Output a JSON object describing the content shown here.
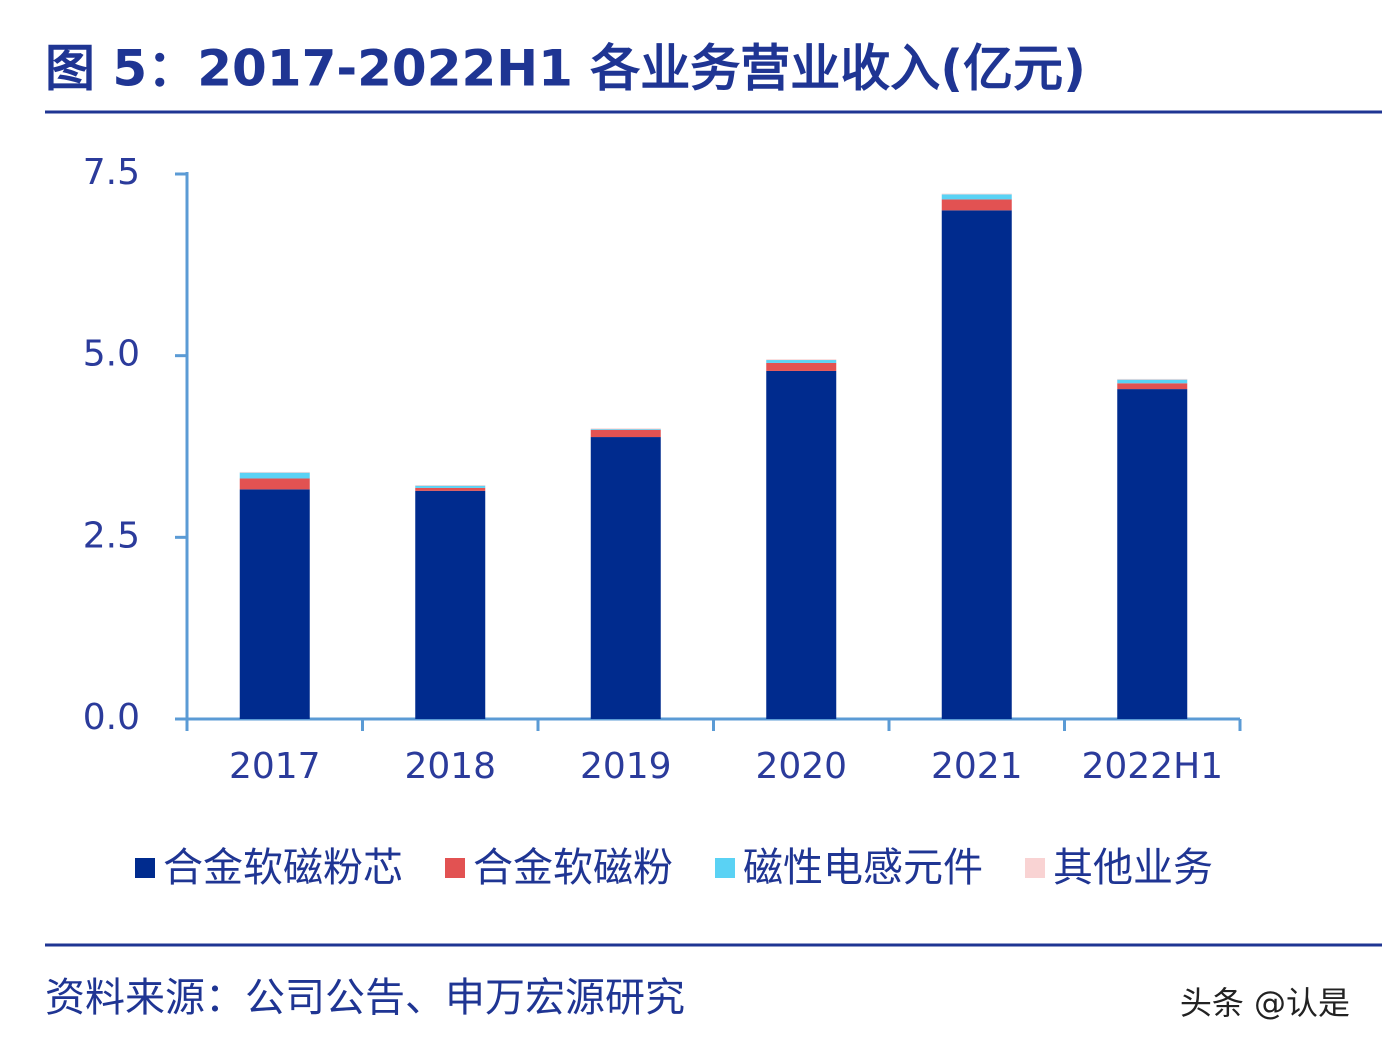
{
  "chart_data": {
    "type": "stacked-bar",
    "title": "图 5：2017-2022H1 各业务营业收入(亿元)",
    "categories": [
      "2017",
      "2018",
      "2019",
      "2020",
      "2021",
      "2022H1"
    ],
    "series": [
      {
        "name": "合金软磁粉芯",
        "color": "#002b8e",
        "values": [
          3.16,
          3.14,
          3.88,
          4.79,
          7.0,
          4.54
        ]
      },
      {
        "name": "合金软磁粉",
        "color": "#e25252",
        "values": [
          0.15,
          0.04,
          0.1,
          0.11,
          0.15,
          0.08
        ]
      },
      {
        "name": "磁性电感元件",
        "color": "#5ad2f4",
        "values": [
          0.08,
          0.03,
          0.01,
          0.04,
          0.07,
          0.05
        ]
      },
      {
        "name": "其他业务",
        "color": "#f9d3d3",
        "values": [
          0.01,
          0.01,
          0.01,
          0.01,
          0.01,
          0.01
        ]
      }
    ],
    "ylim": [
      0,
      7.5
    ],
    "yticks": [
      {
        "value": 0,
        "label": "0.0"
      },
      2.5,
      {
        "value": 5,
        "label": "5.0"
      },
      7.5
    ],
    "source": "资料来源：公司公告、申万宏源研究",
    "watermark": "头条 @认是"
  }
}
